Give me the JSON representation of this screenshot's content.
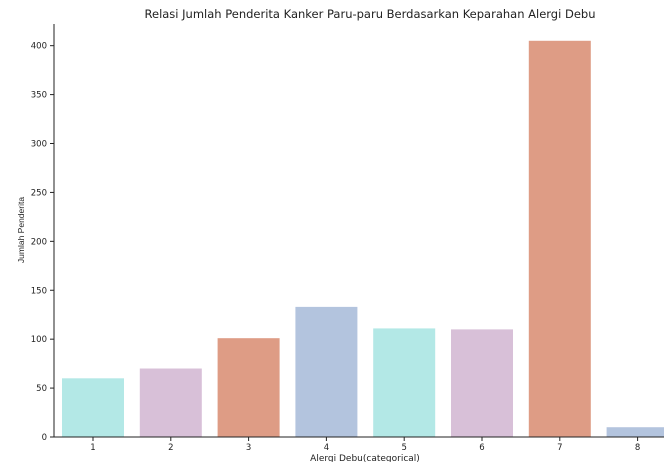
{
  "chart_data": {
    "type": "bar",
    "title": "Relasi Jumlah Penderita Kanker Paru-paru Berdasarkan Keparahan Alergi Debu",
    "xlabel": "Alergi Debu(categorical)",
    "ylabel": "Jumlah Penderita",
    "categories": [
      "1",
      "2",
      "3",
      "4",
      "5",
      "6",
      "7",
      "8"
    ],
    "values": [
      60,
      70,
      101,
      133,
      111,
      110,
      405,
      10
    ],
    "colors": [
      "#b3e8e6",
      "#d8c0d8",
      "#de9c85",
      "#b3c4de",
      "#b3e8e6",
      "#d8c0d8",
      "#de9c85",
      "#b3c4de"
    ],
    "ylim": [
      0,
      420
    ],
    "yticks": [
      0,
      50,
      100,
      150,
      200,
      250,
      300,
      350,
      400
    ],
    "grid": false,
    "legend": "none"
  }
}
